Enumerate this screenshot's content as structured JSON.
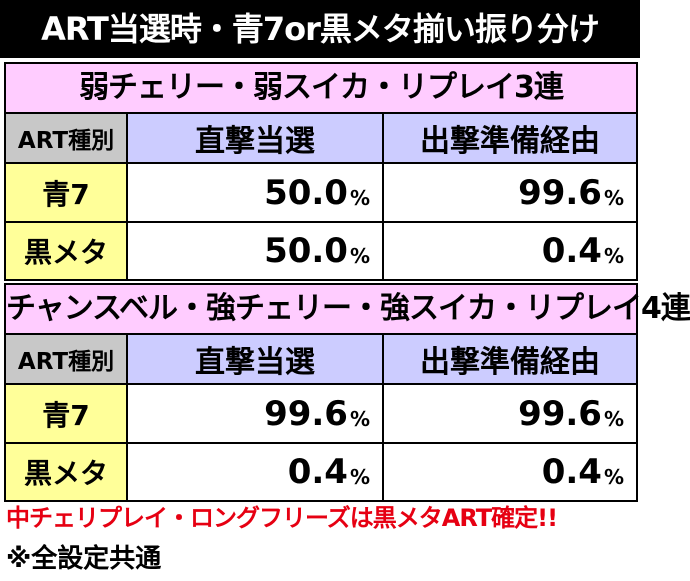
{
  "title": "ART当選時・青7or黒メタ揃い振り分け",
  "tables": [
    {
      "caption": "弱チェリー・弱スイカ・リプレイ3連",
      "header": [
        "ART種別",
        "直撃当選",
        "出撃準備経由"
      ],
      "rows": [
        {
          "label": "青7",
          "cells": [
            {
              "value": "50.0",
              "unit": "%"
            },
            {
              "value": "99.6",
              "unit": "%"
            }
          ]
        },
        {
          "label": "黒メタ",
          "cells": [
            {
              "value": "50.0",
              "unit": "%"
            },
            {
              "value": "0.4",
              "unit": "%"
            }
          ]
        }
      ]
    },
    {
      "caption": "チャンスベル・強チェリー・強スイカ・リプレイ4連",
      "header": [
        "ART種別",
        "直撃当選",
        "出撃準備経由"
      ],
      "rows": [
        {
          "label": "青7",
          "cells": [
            {
              "value": "99.6",
              "unit": "%"
            },
            {
              "value": "99.6",
              "unit": "%"
            }
          ]
        },
        {
          "label": "黒メタ",
          "cells": [
            {
              "value": "0.4",
              "unit": "%"
            },
            {
              "value": "0.4",
              "unit": "%"
            }
          ]
        }
      ]
    }
  ],
  "notes": [
    "中チェリプレイ・ロングフリーズは黒メタART確定!!",
    "※全設定共通"
  ]
}
